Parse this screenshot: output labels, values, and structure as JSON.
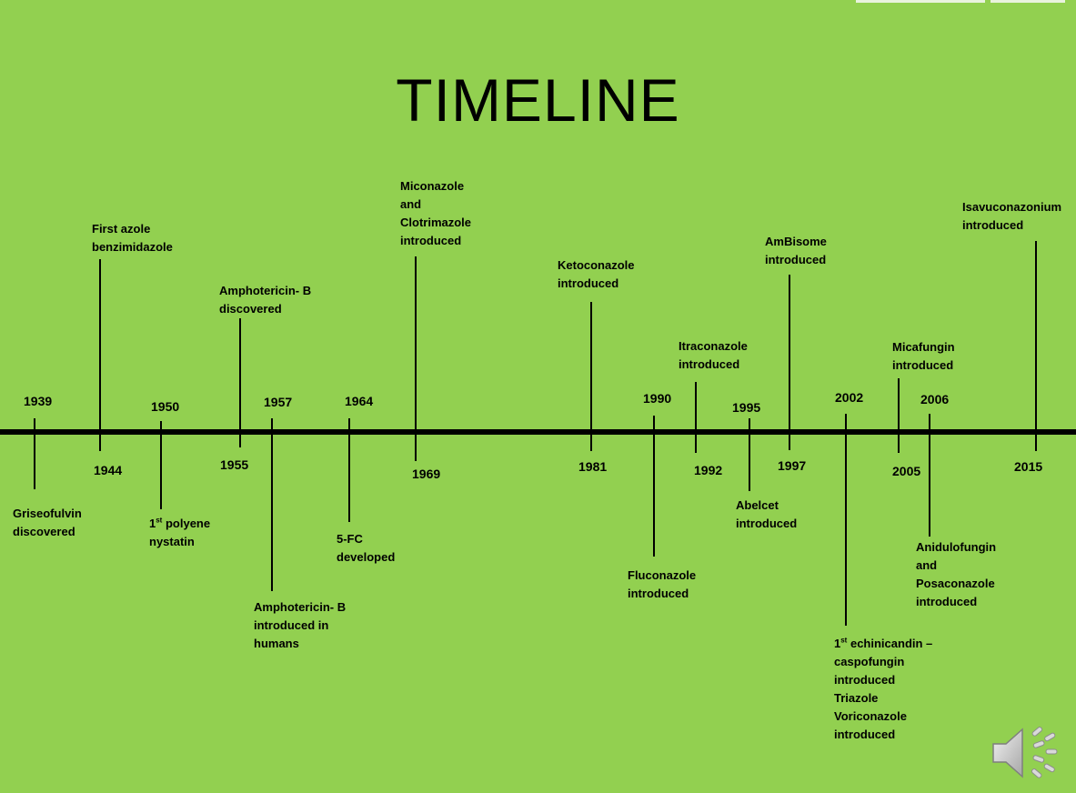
{
  "title": "TIMELINE",
  "events": [
    {
      "year": "1939",
      "lines": [
        "Griseofulvin",
        "discovered"
      ]
    },
    {
      "year": "1944",
      "lines": [
        "First azole",
        "benzimidazole"
      ]
    },
    {
      "year": "1950",
      "lines": [
        "1st polyene",
        "nystatin"
      ]
    },
    {
      "year": "1955",
      "lines": [
        "Amphotericin- B",
        "discovered"
      ]
    },
    {
      "year": "1957",
      "lines": [
        "Amphotericin- B",
        "introduced in",
        "humans"
      ]
    },
    {
      "year": "1964",
      "lines": [
        "5-FC",
        "developed"
      ]
    },
    {
      "year": "1969",
      "lines": [
        "Miconazole",
        "and",
        "Clotrimazole",
        "introduced"
      ]
    },
    {
      "year": "1981",
      "lines": [
        "Ketoconazole",
        "introduced"
      ]
    },
    {
      "year": "1990",
      "lines": [
        "Fluconazole",
        "introduced"
      ]
    },
    {
      "year": "1992",
      "lines": [
        "Itraconazole",
        "introduced"
      ]
    },
    {
      "year": "1995",
      "lines": [
        "Abelcet",
        "introduced"
      ]
    },
    {
      "year": "1997",
      "lines": [
        "AmBisome",
        "introduced"
      ]
    },
    {
      "year": "2002",
      "lines": [
        "1st echinicandin  –",
        "caspofungin",
        "introduced",
        "Triazole",
        "Voriconazole",
        "introduced"
      ]
    },
    {
      "year": "2005",
      "lines": [
        "Micafungin",
        "introduced"
      ]
    },
    {
      "year": "2006",
      "lines": [
        "Anidulofungin",
        "and",
        "Posaconazole",
        "introduced"
      ]
    },
    {
      "year": "2015",
      "lines": [
        "Isavuconazonium",
        "introduced"
      ]
    }
  ],
  "icons": {
    "audio": "speaker-icon"
  }
}
